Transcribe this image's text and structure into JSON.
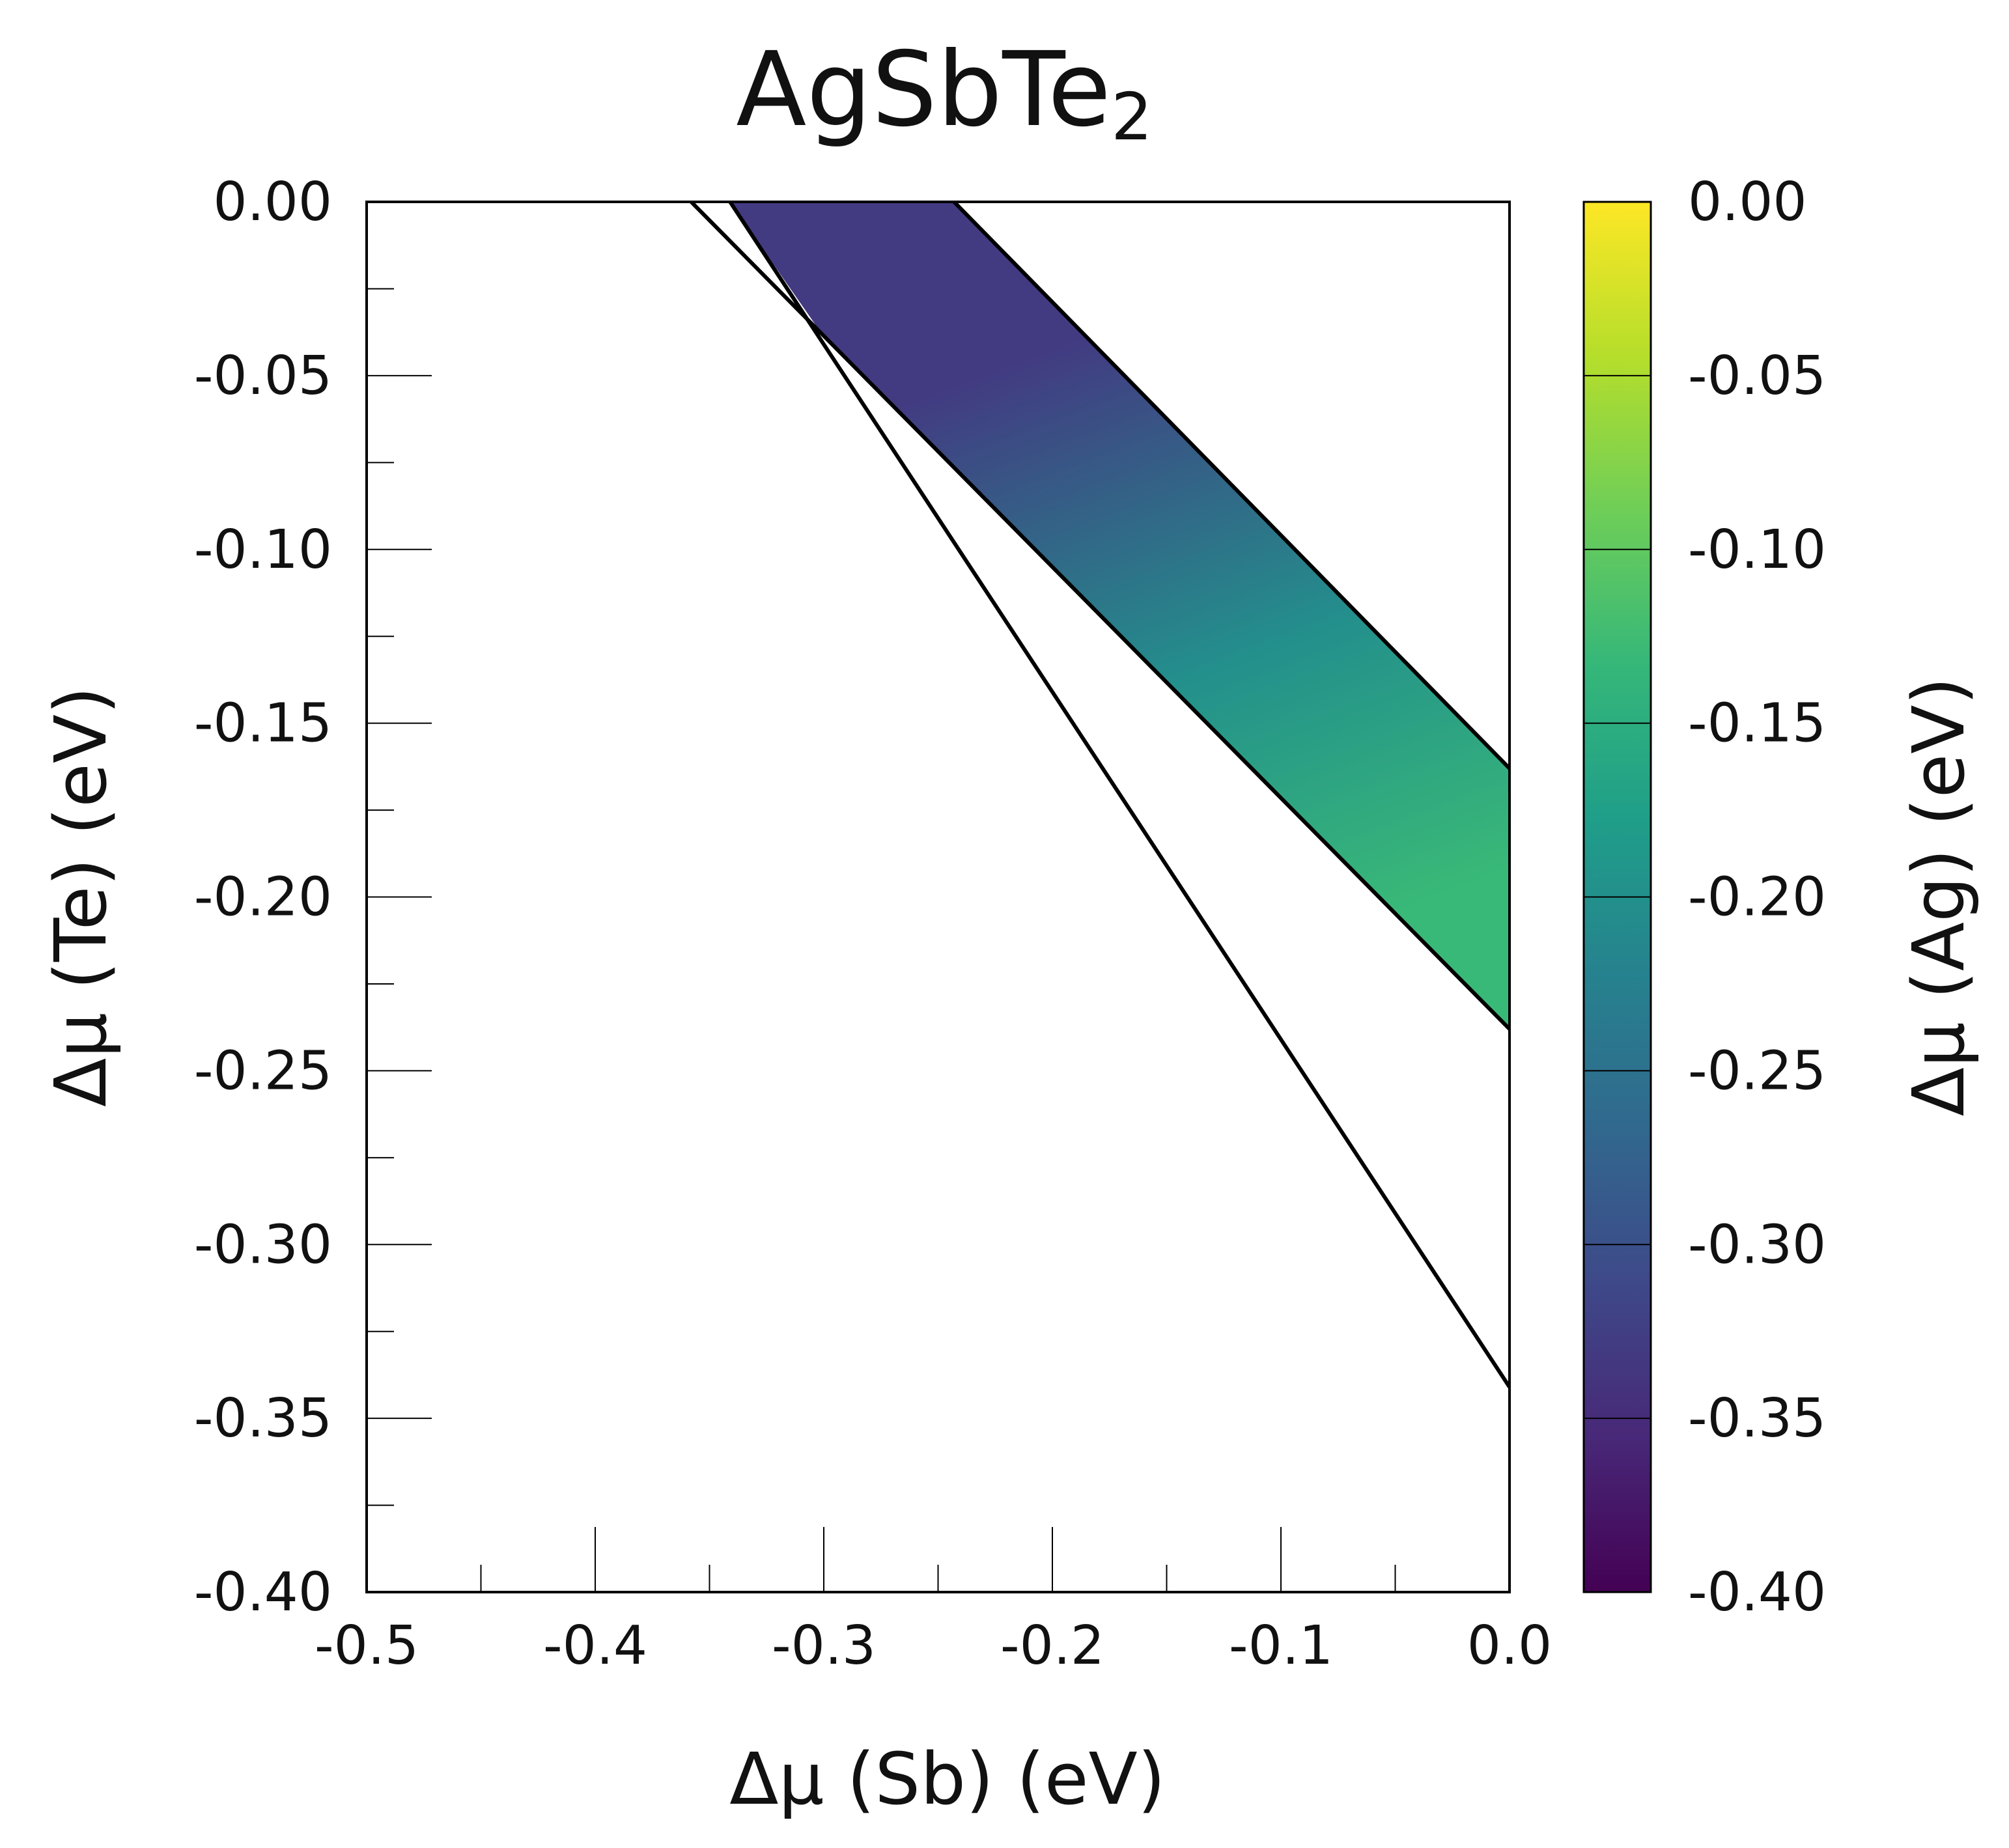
{
  "chart_data": {
    "type": "area",
    "title_main": "AgSbTe",
    "title_sub": "2",
    "xlabel": "Δμ (Sb) (eV)",
    "ylabel": "Δμ (Te) (eV)",
    "xlim": [
      -0.5,
      0.0
    ],
    "ylim": [
      -0.4,
      0.0
    ],
    "x_ticks": [
      "-0.5",
      "-0.4",
      "-0.3",
      "-0.2",
      "-0.1",
      "0.0"
    ],
    "y_ticks": [
      "0.00",
      "-0.05",
      "-0.10",
      "-0.15",
      "-0.20",
      "-0.25",
      "-0.30",
      "-0.35",
      "-0.40"
    ],
    "grid": false,
    "stability_region": {
      "vertices": [
        [
          -0.341,
          0.0
        ],
        [
          -0.243,
          0.0
        ],
        [
          0.0,
          -0.163
        ],
        [
          0.0,
          -0.238
        ],
        [
          -0.3035,
          -0.0355
        ]
      ]
    },
    "boundary_lines": [
      {
        "points": [
          [
            -0.243,
            0.0
          ],
          [
            0.0,
            -0.163
          ]
        ]
      },
      {
        "points": [
          [
            -0.358,
            0.0
          ],
          [
            0.0,
            -0.238
          ]
        ]
      },
      {
        "points": [
          [
            -0.341,
            0.0
          ],
          [
            0.0,
            -0.341
          ]
        ]
      }
    ],
    "colorbar": {
      "label": "Δμ (Ag) (eV)",
      "range": [
        -0.4,
        0.0
      ],
      "ticks": [
        "0.00",
        "-0.05",
        "-0.10",
        "-0.15",
        "-0.20",
        "-0.25",
        "-0.30",
        "-0.35",
        "-0.40"
      ],
      "colormap": "viridis",
      "colors": [
        "#440154",
        "#482878",
        "#3e4989",
        "#31688e",
        "#26828e",
        "#1f9e89",
        "#35b779",
        "#6ece58",
        "#b5de2b",
        "#fde725"
      ]
    },
    "region_color_samples": {
      "top_right_corner": -0.33,
      "bottom_left_corner": -0.2,
      "right_edge_bottom": -0.13
    }
  }
}
